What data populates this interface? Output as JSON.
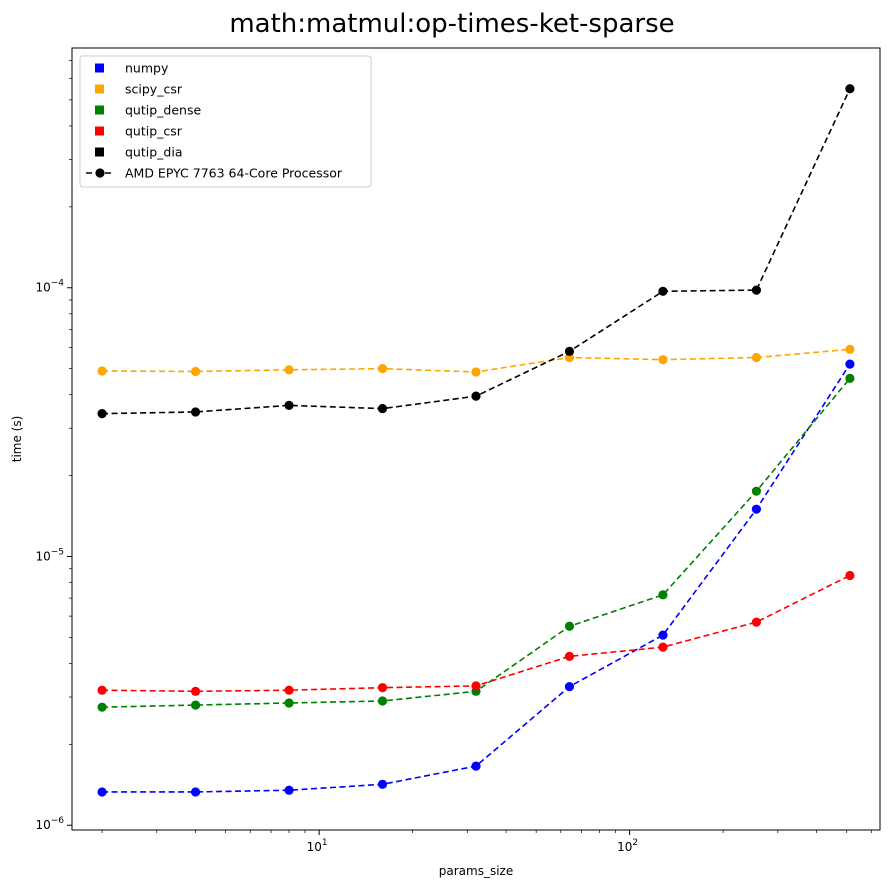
{
  "chart_data": {
    "type": "line",
    "title": "math:matmul:op-times-ket-sparse",
    "xlabel": "params_size",
    "ylabel": "time (s)",
    "xscale": "log",
    "yscale": "log",
    "xlim": [
      1.6,
      640
    ],
    "ylim": [
      9.6e-07,
      0.00078
    ],
    "x": [
      2,
      4,
      8,
      16,
      32,
      64,
      128,
      256,
      512
    ],
    "x_ticks": [
      {
        "value": 10,
        "base": "10",
        "exp": "1"
      },
      {
        "value": 100,
        "base": "10",
        "exp": "2"
      }
    ],
    "y_ticks": [
      {
        "value": 1e-06,
        "base": "10",
        "exp": "−6"
      },
      {
        "value": 1e-05,
        "base": "10",
        "exp": "−5"
      },
      {
        "value": 0.0001,
        "base": "10",
        "exp": "−4"
      }
    ],
    "legend_position": "top-left",
    "grid": false,
    "series": [
      {
        "name": "numpy",
        "color": "#0000ff",
        "values": [
          1.33e-06,
          1.33e-06,
          1.35e-06,
          1.42e-06,
          1.66e-06,
          3.28e-06,
          5.1e-06,
          1.5e-05,
          5.2e-05
        ]
      },
      {
        "name": "scipy_csr",
        "color": "#ffa500",
        "values": [
          4.9e-05,
          4.88e-05,
          4.95e-05,
          5e-05,
          4.86e-05,
          5.5e-05,
          5.4e-05,
          5.5e-05,
          5.9e-05
        ]
      },
      {
        "name": "qutip_dense",
        "color": "#008000",
        "values": [
          2.75e-06,
          2.8e-06,
          2.85e-06,
          2.9e-06,
          3.15e-06,
          5.5e-06,
          7.2e-06,
          1.75e-05,
          4.6e-05
        ]
      },
      {
        "name": "qutip_csr",
        "color": "#ff0000",
        "values": [
          3.18e-06,
          3.15e-06,
          3.18e-06,
          3.25e-06,
          3.3e-06,
          4.25e-06,
          4.6e-06,
          5.7e-06,
          8.5e-06
        ]
      },
      {
        "name": "qutip_dia",
        "color": "#000000",
        "values": [
          3.4e-05,
          3.45e-05,
          3.65e-05,
          3.55e-05,
          3.95e-05,
          5.8e-05,
          9.7e-05,
          9.8e-05,
          0.00055
        ]
      }
    ],
    "legend": [
      {
        "label": "numpy",
        "color": "#0000ff",
        "kind": "square"
      },
      {
        "label": "scipy_csr",
        "color": "#ffa500",
        "kind": "square"
      },
      {
        "label": "qutip_dense",
        "color": "#008000",
        "kind": "square"
      },
      {
        "label": "qutip_csr",
        "color": "#ff0000",
        "kind": "square"
      },
      {
        "label": "qutip_dia",
        "color": "#000000",
        "kind": "square"
      },
      {
        "label": "AMD EPYC 7763 64-Core Processor",
        "color": "#000000",
        "kind": "line-marker"
      }
    ]
  }
}
